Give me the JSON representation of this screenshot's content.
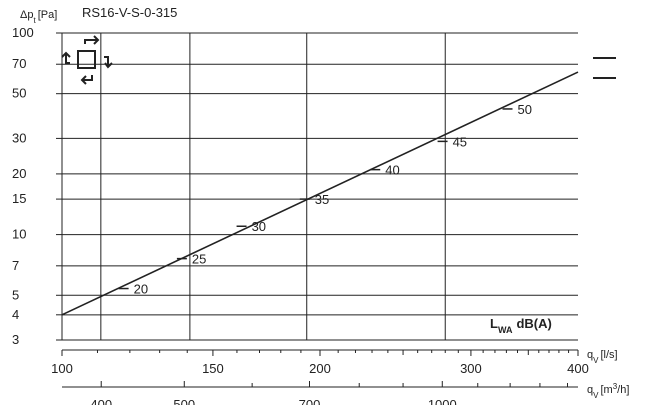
{
  "chart_data": {
    "type": "line",
    "title": "RS16-V-S-0-315",
    "ylabel": {
      "symbol": "Δp",
      "sub": "t",
      "unit": "[Pa]"
    },
    "xlabel": {
      "symbol": "q",
      "sub": "V",
      "unit": "[l/s]"
    },
    "x2label": {
      "symbol": "q",
      "sub": "V",
      "unit_pre": "[m",
      "unit_sup": "3",
      "unit_post": "/h]"
    },
    "x_scale": "log",
    "y_scale": "log",
    "xlim": [
      100,
      400
    ],
    "ylim": [
      3,
      100
    ],
    "x_ticks": [
      100,
      150,
      200,
      300,
      400
    ],
    "x2_ticks": [
      400,
      500,
      700,
      1000
    ],
    "y_ticks": [
      3,
      4,
      5,
      7,
      10,
      15,
      20,
      30,
      50,
      70,
      100
    ],
    "x_gridlines": [
      111,
      141,
      193,
      280
    ],
    "grid": true,
    "series": [
      {
        "x": [
          100,
          400
        ],
        "y": [
          4.0,
          64
        ]
      }
    ],
    "sound_labels": [
      {
        "text": "20",
        "x": 118,
        "y": 5.4
      },
      {
        "text": "25",
        "x": 138,
        "y": 7.6
      },
      {
        "text": "30",
        "x": 162,
        "y": 11
      },
      {
        "text": "35",
        "x": 192,
        "y": 15
      },
      {
        "text": "40",
        "x": 232,
        "y": 21
      },
      {
        "text": "45",
        "x": 278,
        "y": 29
      },
      {
        "text": "50",
        "x": 331,
        "y": 42
      }
    ],
    "legend_text": {
      "main": "L",
      "sub": "WA",
      "unit": "dB(A)"
    }
  }
}
